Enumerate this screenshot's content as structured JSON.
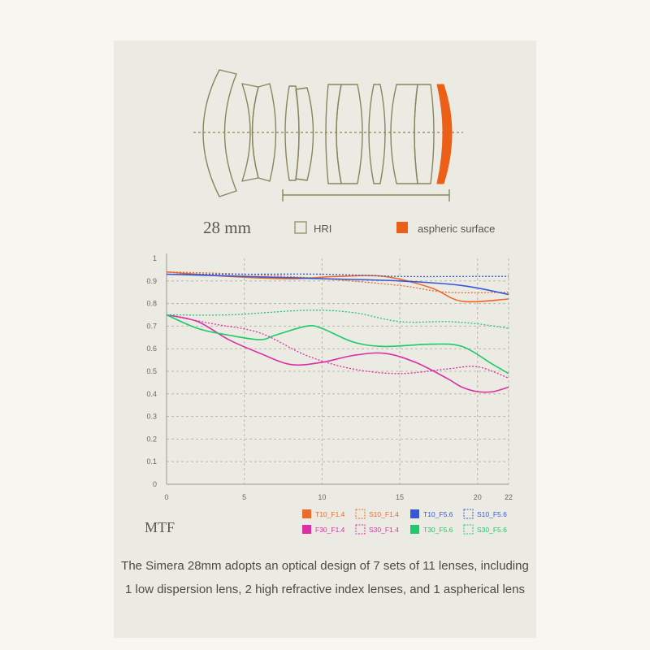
{
  "diagram": {
    "focal_length": "28 mm",
    "legend_hri": "HRI",
    "legend_aspheric": "aspheric surface",
    "lens_color": "#8a845d",
    "aspheric_color": "#ec5f16"
  },
  "mtf_label": "MTF",
  "description": "The Simera 28mm adopts an optical design of 7 sets of 11 lenses, including 1 low dispersion lens, 2 high refractive index lenses, and 1 aspherical lens",
  "chart_data": {
    "type": "line",
    "title": "MTF",
    "xlabel": "",
    "ylabel": "",
    "xlim": [
      0,
      22
    ],
    "ylim": [
      0,
      1
    ],
    "x_ticks": [
      "0",
      "5",
      "10",
      "15",
      "20",
      "22"
    ],
    "x_tick_values": [
      0,
      5,
      10,
      15,
      20,
      22
    ],
    "y_ticks": [
      "0",
      "0.1",
      "0.2",
      "0.3",
      "0.4",
      "0.5",
      "0.6",
      "0.7",
      "0.8",
      "0.9",
      "1"
    ],
    "y_tick_values": [
      0,
      0.1,
      0.2,
      0.3,
      0.4,
      0.5,
      0.6,
      0.7,
      0.8,
      0.9,
      1
    ],
    "grid": true,
    "legend_position": "bottom-right",
    "series": [
      {
        "name": "T10_F1.4",
        "color": "#ec6a2a",
        "dash": false,
        "x": [
          0,
          4,
          8,
          11,
          14,
          17,
          19,
          22
        ],
        "y": [
          0.94,
          0.92,
          0.91,
          0.92,
          0.92,
          0.87,
          0.81,
          0.82
        ]
      },
      {
        "name": "S10_F1.4",
        "color": "#ec6a2a",
        "dash": true,
        "x": [
          0,
          5,
          10,
          15,
          18,
          22
        ],
        "y": [
          0.94,
          0.93,
          0.91,
          0.88,
          0.85,
          0.85
        ]
      },
      {
        "name": "T10_F5.6",
        "color": "#3558d6",
        "dash": false,
        "x": [
          0,
          5,
          10,
          15,
          19,
          22
        ],
        "y": [
          0.93,
          0.92,
          0.91,
          0.9,
          0.88,
          0.84
        ]
      },
      {
        "name": "S10_F5.6",
        "color": "#3558d6",
        "dash": true,
        "x": [
          0,
          5,
          10,
          15,
          20,
          22
        ],
        "y": [
          0.93,
          0.93,
          0.93,
          0.92,
          0.92,
          0.92
        ]
      },
      {
        "name": "F30_F1.4",
        "color": "#dd2fa5",
        "dash": false,
        "x": [
          0,
          2,
          4,
          6,
          8,
          10,
          12,
          14,
          16,
          18,
          19,
          20,
          21,
          22
        ],
        "y": [
          0.75,
          0.72,
          0.64,
          0.58,
          0.53,
          0.54,
          0.57,
          0.58,
          0.54,
          0.47,
          0.43,
          0.41,
          0.41,
          0.43
        ]
      },
      {
        "name": "S30_F1.4",
        "color": "#dd2fa5",
        "dash": true,
        "x": [
          0,
          3,
          6,
          9,
          12,
          15,
          18,
          20,
          22
        ],
        "y": [
          0.75,
          0.71,
          0.67,
          0.57,
          0.51,
          0.49,
          0.51,
          0.52,
          0.47
        ]
      },
      {
        "name": "T30_F5.6",
        "color": "#1ec96a",
        "dash": false,
        "x": [
          0,
          2,
          4,
          6,
          7,
          9,
          10,
          12,
          14,
          17,
          19,
          21,
          22
        ],
        "y": [
          0.75,
          0.69,
          0.66,
          0.64,
          0.66,
          0.7,
          0.69,
          0.63,
          0.61,
          0.62,
          0.61,
          0.53,
          0.49
        ]
      },
      {
        "name": "S30_F5.6",
        "color": "#1ec96a",
        "dash": true,
        "x": [
          0,
          4,
          9,
          12,
          15,
          18,
          20,
          22
        ],
        "y": [
          0.75,
          0.75,
          0.77,
          0.76,
          0.72,
          0.72,
          0.71,
          0.69
        ]
      }
    ]
  }
}
